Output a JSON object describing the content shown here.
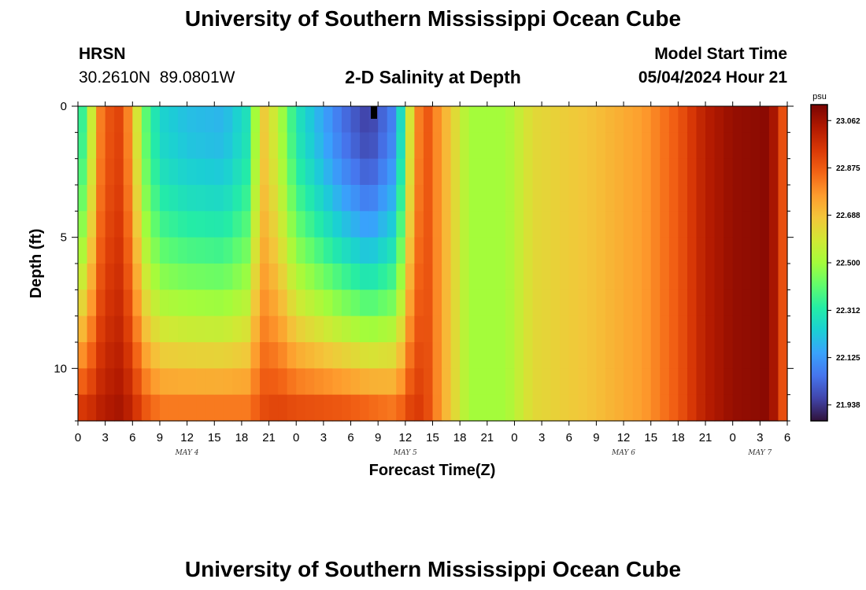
{
  "header": {
    "title": "University of Southern Mississippi Ocean Cube",
    "station": "HRSN",
    "coords": "30.2610N  89.0801W",
    "plot_title": "2-D Salinity at Depth",
    "start_label": "Model Start Time",
    "start_value": "05/04/2024 Hour 21"
  },
  "footer": {
    "title": "University of Southern Mississippi Ocean Cube"
  },
  "colorbar": {
    "unit": "psu",
    "min": 21.875,
    "max": 23.125,
    "ticks": [
      21.938,
      22.125,
      22.312,
      22.5,
      22.688,
      22.875,
      23.062
    ],
    "tick_labels": [
      "21.938",
      "22.125",
      "22.312",
      "22.500",
      "22.688",
      "22.875",
      "23.062"
    ],
    "colors": [
      "#30123b",
      "#4145ab",
      "#4675ed",
      "#39a2fc",
      "#1bcfd4",
      "#24eca6",
      "#61fc6c",
      "#a4fc3b",
      "#d1e834",
      "#f3c63a",
      "#fe9b2d",
      "#f36315",
      "#d93806",
      "#b11901",
      "#7a0402"
    ]
  },
  "chart_data": {
    "type": "heatmap",
    "title": "2-D Salinity at Depth",
    "xlabel": "Forecast Time(Z)",
    "ylabel": "Depth (ft)",
    "ylim": [
      0,
      12
    ],
    "y_ticks": [
      0,
      5,
      10
    ],
    "y_tick_labels": [
      "0",
      "5",
      "10"
    ],
    "x_range_hours": [
      0,
      78
    ],
    "x_ticks": [
      0,
      3,
      6,
      9,
      12,
      15,
      18,
      21,
      24,
      27,
      30,
      33,
      36,
      39,
      42,
      45,
      48,
      51,
      54,
      57,
      60,
      63,
      66,
      69,
      72,
      75,
      78
    ],
    "x_tick_labels": [
      "0",
      "3",
      "6",
      "9",
      "12",
      "15",
      "18",
      "21",
      "0",
      "3",
      "6",
      "9",
      "12",
      "15",
      "18",
      "21",
      "0",
      "3",
      "6",
      "9",
      "12",
      "15",
      "18",
      "21",
      "0",
      "3",
      "6"
    ],
    "day_labels": [
      {
        "text": "MAY 4",
        "hour": 12
      },
      {
        "text": "MAY 5",
        "hour": 36
      },
      {
        "text": "MAY 6",
        "hour": 60
      },
      {
        "text": "MAY 7",
        "hour": 75
      }
    ],
    "depth_levels": 12,
    "value_range_psu": [
      21.875,
      23.125
    ],
    "profiles": [
      {
        "hour": 0,
        "surface": 22.3,
        "bottom": 22.95
      },
      {
        "hour": 1,
        "surface": 22.4,
        "bottom": 22.95
      },
      {
        "hour": 2,
        "surface": 22.75,
        "bottom": 23.0
      },
      {
        "hour": 3,
        "surface": 22.88,
        "bottom": 23.03
      },
      {
        "hour": 4.5,
        "surface": 22.92,
        "bottom": 23.05
      },
      {
        "hour": 6,
        "surface": 22.75,
        "bottom": 23.0
      },
      {
        "hour": 7,
        "surface": 22.45,
        "bottom": 22.9
      },
      {
        "hour": 9,
        "surface": 22.25,
        "bottom": 22.82
      },
      {
        "hour": 12,
        "surface": 22.2,
        "bottom": 22.82
      },
      {
        "hour": 16,
        "surface": 22.18,
        "bottom": 22.82
      },
      {
        "hour": 19,
        "surface": 22.3,
        "bottom": 22.82
      },
      {
        "hour": 20,
        "surface": 22.7,
        "bottom": 22.9
      },
      {
        "hour": 22,
        "surface": 22.55,
        "bottom": 22.92
      },
      {
        "hour": 24,
        "surface": 22.3,
        "bottom": 22.9
      },
      {
        "hour": 29,
        "surface": 22.05,
        "bottom": 22.88
      },
      {
        "hour": 32,
        "surface": 21.95,
        "bottom": 22.85
      },
      {
        "hour": 35,
        "surface": 22.1,
        "bottom": 22.82
      },
      {
        "hour": 36.5,
        "surface": 22.6,
        "bottom": 22.92
      },
      {
        "hour": 38,
        "surface": 22.92,
        "bottom": 22.95
      },
      {
        "hour": 40,
        "surface": 22.75,
        "bottom": 22.75
      },
      {
        "hour": 43,
        "surface": 22.5,
        "bottom": 22.5
      },
      {
        "hour": 47,
        "surface": 22.5,
        "bottom": 22.5
      },
      {
        "hour": 50,
        "surface": 22.63,
        "bottom": 22.63
      },
      {
        "hour": 56,
        "surface": 22.68,
        "bottom": 22.68
      },
      {
        "hour": 62,
        "surface": 22.76,
        "bottom": 22.76
      },
      {
        "hour": 66,
        "surface": 22.88,
        "bottom": 22.88
      },
      {
        "hour": 69,
        "surface": 23.02,
        "bottom": 23.02
      },
      {
        "hour": 72,
        "surface": 23.08,
        "bottom": 23.08
      },
      {
        "hour": 76,
        "surface": 23.1,
        "bottom": 23.1
      },
      {
        "hour": 77,
        "surface": 23.0,
        "bottom": 23.0
      },
      {
        "hour": 78,
        "surface": 22.8,
        "bottom": 22.8
      }
    ]
  }
}
